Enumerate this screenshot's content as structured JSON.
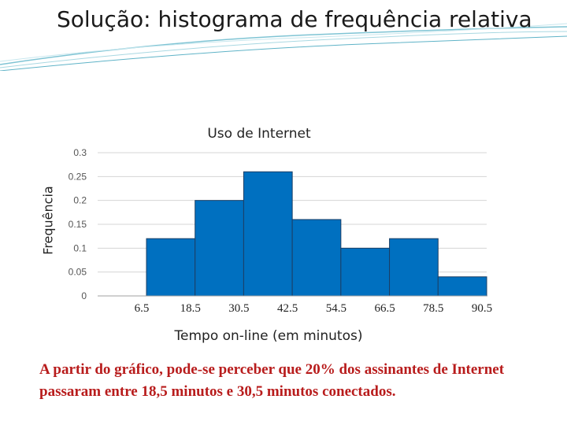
{
  "slide": {
    "title": "Solução: histograma de  frequência relativa",
    "conclusion": "A partir do gráfico, pode-se perceber que 20% dos assinantes de Internet passaram entre 18,5 minutos e 30,5 minutos conectados."
  },
  "colors": {
    "bar_fill": "#0070c0",
    "title_text": "#1a1a1a",
    "conclusion_text": "#b81c1c",
    "decor_line": "#7fc4d4"
  },
  "chart_data": {
    "type": "bar",
    "title": "Uso de Internet",
    "xlabel": "Tempo on-line (em minutos)",
    "ylabel": "Frequência",
    "x_ticks": [
      "6.5",
      "18.5",
      "30.5",
      "42.5",
      "54.5",
      "66.5",
      "78.5",
      "90.5"
    ],
    "y_ticks": [
      "0",
      "0.05",
      "0.1",
      "0.15",
      "0.2",
      "0.25",
      "0.3"
    ],
    "bins": [
      {
        "from": 6.5,
        "to": 18.5,
        "value": 0.12
      },
      {
        "from": 18.5,
        "to": 30.5,
        "value": 0.2
      },
      {
        "from": 30.5,
        "to": 42.5,
        "value": 0.26
      },
      {
        "from": 42.5,
        "to": 54.5,
        "value": 0.16
      },
      {
        "from": 54.5,
        "to": 66.5,
        "value": 0.1
      },
      {
        "from": 66.5,
        "to": 78.5,
        "value": 0.12
      },
      {
        "from": 78.5,
        "to": 90.5,
        "value": 0.04
      }
    ],
    "ylim": [
      0,
      0.3
    ],
    "grid": true
  }
}
